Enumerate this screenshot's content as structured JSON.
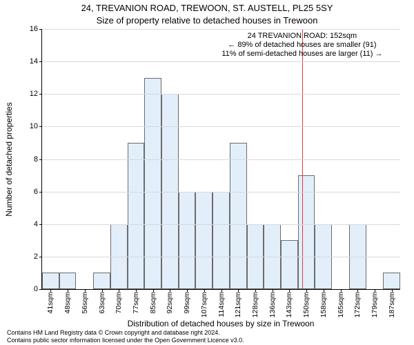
{
  "title_line1": "24, TREVANION ROAD, TREWOON, ST. AUSTELL, PL25 5SY",
  "title_line2": "Size of property relative to detached houses in Trewoon",
  "ylabel": "Number of detached properties",
  "xlabel": "Distribution of detached houses by size in Trewoon",
  "footer_line1": "Contains HM Land Registry data © Crown copyright and database right 2024.",
  "footer_line2": "Contains public sector information licensed under the Open Government Licence v3.0.",
  "chart": {
    "type": "histogram",
    "bar_fill": "#e3eefb",
    "bar_border": "#6b6b6b",
    "grid_color": "#d9d9d9",
    "background_color": "#ffffff",
    "vline_color": "#e53935",
    "ylim": [
      0,
      16
    ],
    "ytick_step": 2,
    "yticks": [
      0,
      2,
      4,
      6,
      8,
      10,
      12,
      14,
      16
    ],
    "bar_width": 1.0,
    "x_tick_labels": [
      "41sqm",
      "48sqm",
      "56sqm",
      "63sqm",
      "70sqm",
      "77sqm",
      "85sqm",
      "92sqm",
      "99sqm",
      "107sqm",
      "114sqm",
      "121sqm",
      "128sqm",
      "136sqm",
      "143sqm",
      "150sqm",
      "158sqm",
      "165sqm",
      "172sqm",
      "179sqm",
      "187sqm"
    ],
    "values": [
      1,
      1,
      0,
      1,
      4,
      9,
      13,
      12,
      6,
      6,
      6,
      9,
      4,
      4,
      3,
      7,
      4,
      0,
      4,
      0,
      1
    ],
    "marker_value_index": 15,
    "marker_sqm": 152,
    "annotation": {
      "line1": "24 TREVANION ROAD: 152sqm",
      "line2": "← 89% of detached houses are smaller (91)",
      "line3": "11% of semi-detached houses are larger (11) →"
    }
  }
}
